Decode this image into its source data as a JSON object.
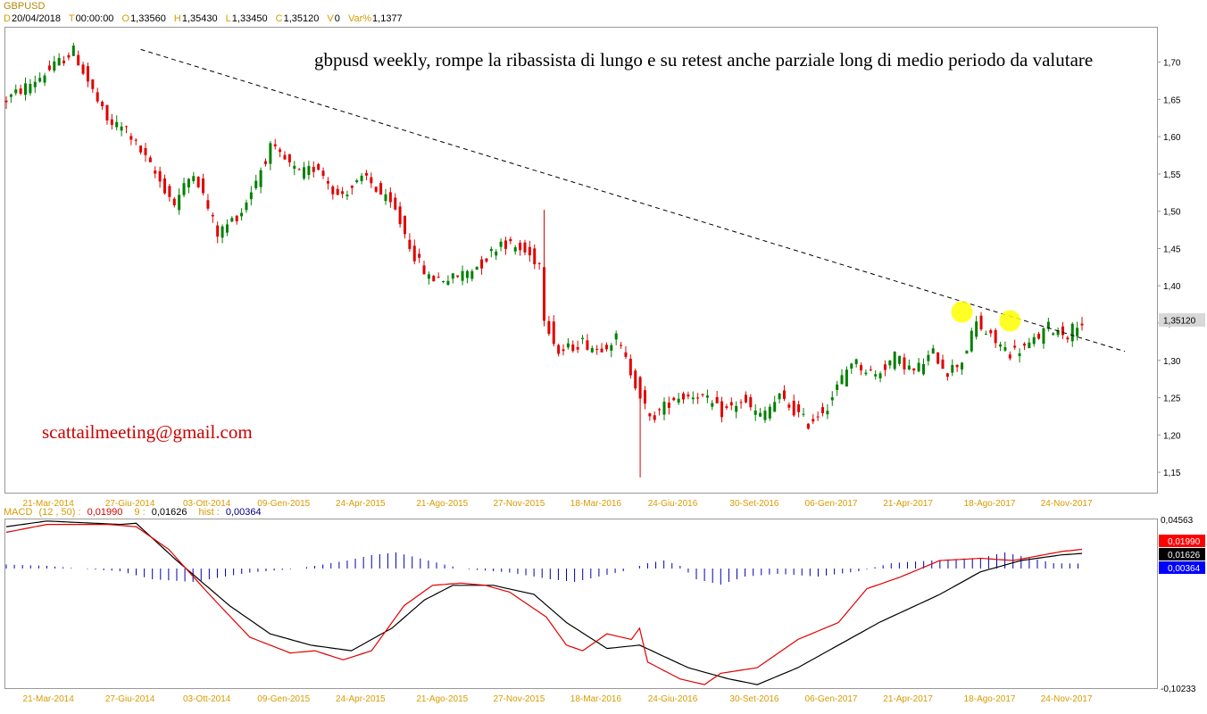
{
  "header": {
    "symbol": "GBPUSD",
    "fields": [
      {
        "key": "D",
        "value": "20/04/2018"
      },
      {
        "key": "T",
        "value": "00:00:00"
      },
      {
        "key": "O",
        "value": "1,33560"
      },
      {
        "key": "H",
        "value": "1,35430"
      },
      {
        "key": "L",
        "value": "1,33450"
      },
      {
        "key": "C",
        "value": "1,35120"
      },
      {
        "key": "V",
        "value": "0"
      },
      {
        "key": "Var%",
        "value": "1,1377"
      }
    ]
  },
  "annotation": "gbpusd weekly, rompe la ribassista di lungo e su retest anche parziale long di medio periodo da valutare",
  "email": "scattailmeeting@gmail.com",
  "macd_header": {
    "label": "MACD",
    "params": "(12 , 50) :",
    "macd_value": "0,01990",
    "signal_label": "9 :",
    "signal_value": "0,01626",
    "hist_label": "hist :",
    "hist_value": "0,00364"
  },
  "colors": {
    "up": "#008000",
    "down": "#e00000",
    "macd": "#e00000",
    "signal": "#000000",
    "hist": "#0000b0",
    "date_label": "#d89b00",
    "highlight": "#ffff00"
  },
  "chart_data": [
    {
      "type": "candlestick",
      "series": [
        {
          "name": "GBPUSD"
        }
      ],
      "timeframe": "weekly",
      "x_ticks": [
        "21-Mar-2014",
        "27-Giu-2014",
        "03-Ott-2014",
        "09-Gen-2015",
        "24-Apr-2015",
        "21-Ago-2015",
        "27-Nov-2015",
        "18-Mar-2016",
        "24-Giu-2016",
        "30-Set-2016",
        "06-Gen-2017",
        "21-Apr-2017",
        "18-Ago-2017",
        "24-Nov-2017"
      ],
      "y_ticks": [
        "1,70",
        "1,65",
        "1,60",
        "1,55",
        "1,50",
        "1,45",
        "1,40",
        "1,35",
        "1,30",
        "1,25",
        "1,20",
        "1,15"
      ],
      "ylim": [
        1.125,
        1.745
      ],
      "last_price": "1,35120",
      "path": [
        [
          0,
          1.645
        ],
        [
          8,
          1.68
        ],
        [
          15,
          1.715
        ],
        [
          22,
          1.62
        ],
        [
          26,
          1.61
        ],
        [
          30,
          1.57
        ],
        [
          36,
          1.51
        ],
        [
          40,
          1.555
        ],
        [
          45,
          1.47
        ],
        [
          50,
          1.5
        ],
        [
          56,
          1.585
        ],
        [
          62,
          1.55
        ],
        [
          66,
          1.56
        ],
        [
          70,
          1.52
        ],
        [
          76,
          1.545
        ],
        [
          82,
          1.5
        ],
        [
          86,
          1.44
        ],
        [
          89,
          1.41
        ],
        [
          94,
          1.41
        ],
        [
          100,
          1.43
        ],
        [
          104,
          1.46
        ],
        [
          109,
          1.445
        ],
        [
          112,
          1.43
        ],
        [
          113,
          1.36
        ],
        [
          116,
          1.31
        ],
        [
          121,
          1.325
        ],
        [
          124,
          1.315
        ],
        [
          128,
          1.33
        ],
        [
          132,
          1.27
        ],
        [
          135,
          1.22
        ],
        [
          140,
          1.25
        ],
        [
          145,
          1.255
        ],
        [
          150,
          1.23
        ],
        [
          154,
          1.245
        ],
        [
          158,
          1.225
        ],
        [
          162,
          1.25
        ],
        [
          168,
          1.215
        ],
        [
          172,
          1.24
        ],
        [
          177,
          1.3
        ],
        [
          182,
          1.28
        ],
        [
          186,
          1.305
        ],
        [
          190,
          1.285
        ],
        [
          194,
          1.31
        ],
        [
          197,
          1.285
        ],
        [
          200,
          1.3
        ],
        [
          203,
          1.35
        ],
        [
          206,
          1.33
        ],
        [
          210,
          1.31
        ],
        [
          214,
          1.32
        ],
        [
          218,
          1.345
        ],
        [
          222,
          1.335
        ],
        [
          224,
          1.351
        ]
      ],
      "trendline": {
        "from": {
          "x": "27-Giu-2014",
          "y": 1.717
        },
        "to": {
          "x": "24-Nov-2017",
          "y": 1.328
        },
        "style": "dashed"
      },
      "highlights": [
        {
          "x": "18-Ago-2017",
          "y": 1.365
        },
        {
          "x": "24-Nov-2017",
          "y": 1.353
        }
      ]
    },
    {
      "type": "line",
      "title": "MACD",
      "series": [
        {
          "name": "MACD"
        },
        {
          "name": "signal"
        },
        {
          "name": "hist"
        }
      ],
      "y_ticks": [
        "0,04563",
        "-0,10233"
      ],
      "ylim": [
        -0.10233,
        0.04563
      ],
      "macd_path": [
        [
          0,
          0.035
        ],
        [
          10,
          0.042
        ],
        [
          25,
          0.042
        ],
        [
          32,
          0.04
        ],
        [
          40,
          0.02
        ],
        [
          50,
          -0.02
        ],
        [
          60,
          -0.058
        ],
        [
          70,
          -0.072
        ],
        [
          76,
          -0.07
        ],
        [
          83,
          -0.078
        ],
        [
          90,
          -0.07
        ],
        [
          98,
          -0.03
        ],
        [
          105,
          -0.012
        ],
        [
          112,
          -0.01
        ],
        [
          118,
          -0.012
        ],
        [
          124,
          -0.018
        ],
        [
          133,
          -0.04
        ],
        [
          138,
          -0.065
        ],
        [
          142,
          -0.07
        ],
        [
          148,
          -0.055
        ],
        [
          154,
          -0.06
        ],
        [
          156,
          -0.05
        ],
        [
          158,
          -0.08
        ],
        [
          166,
          -0.095
        ],
        [
          172,
          -0.1
        ],
        [
          176,
          -0.09
        ],
        [
          185,
          -0.085
        ],
        [
          195,
          -0.06
        ],
        [
          205,
          -0.045
        ],
        [
          212,
          -0.015
        ],
        [
          220,
          -0.005
        ],
        [
          230,
          0.01
        ],
        [
          240,
          0.012
        ],
        [
          248,
          0.01
        ],
        [
          260,
          0.018
        ],
        [
          265,
          0.0199
        ]
      ],
      "signal_path": [
        [
          0,
          0.04
        ],
        [
          10,
          0.045
        ],
        [
          28,
          0.042
        ],
        [
          32,
          0.043
        ],
        [
          42,
          0.01
        ],
        [
          55,
          -0.03
        ],
        [
          65,
          -0.055
        ],
        [
          75,
          -0.065
        ],
        [
          85,
          -0.07
        ],
        [
          95,
          -0.05
        ],
        [
          103,
          -0.025
        ],
        [
          110,
          -0.012
        ],
        [
          120,
          -0.012
        ],
        [
          130,
          -0.02
        ],
        [
          138,
          -0.045
        ],
        [
          148,
          -0.068
        ],
        [
          156,
          -0.065
        ],
        [
          162,
          -0.075
        ],
        [
          168,
          -0.085
        ],
        [
          178,
          -0.095
        ],
        [
          185,
          -0.1
        ],
        [
          195,
          -0.085
        ],
        [
          205,
          -0.065
        ],
        [
          215,
          -0.045
        ],
        [
          230,
          -0.02
        ],
        [
          240,
          0.0
        ],
        [
          250,
          0.01
        ],
        [
          260,
          0.015
        ],
        [
          265,
          0.01626
        ]
      ],
      "hist_path": [
        [
          0,
          0.003
        ],
        [
          10,
          0.002
        ],
        [
          18,
          0.0
        ],
        [
          28,
          -0.002
        ],
        [
          36,
          -0.008
        ],
        [
          46,
          -0.01
        ],
        [
          54,
          -0.006
        ],
        [
          60,
          -0.003
        ],
        [
          72,
          0.0
        ],
        [
          84,
          0.006
        ],
        [
          90,
          0.01
        ],
        [
          96,
          0.012
        ],
        [
          104,
          0.006
        ],
        [
          112,
          0.0
        ],
        [
          124,
          -0.003
        ],
        [
          134,
          -0.008
        ],
        [
          140,
          -0.01
        ],
        [
          146,
          -0.006
        ],
        [
          152,
          -0.002
        ],
        [
          158,
          0.004
        ],
        [
          162,
          0.006
        ],
        [
          166,
          0.002
        ],
        [
          170,
          -0.008
        ],
        [
          176,
          -0.012
        ],
        [
          182,
          -0.006
        ],
        [
          190,
          -0.004
        ],
        [
          200,
          -0.006
        ],
        [
          210,
          -0.002
        ],
        [
          218,
          0.004
        ],
        [
          228,
          0.006
        ],
        [
          240,
          0.008
        ],
        [
          246,
          0.012
        ],
        [
          252,
          0.008
        ],
        [
          258,
          0.004
        ],
        [
          265,
          0.00364
        ]
      ]
    }
  ]
}
